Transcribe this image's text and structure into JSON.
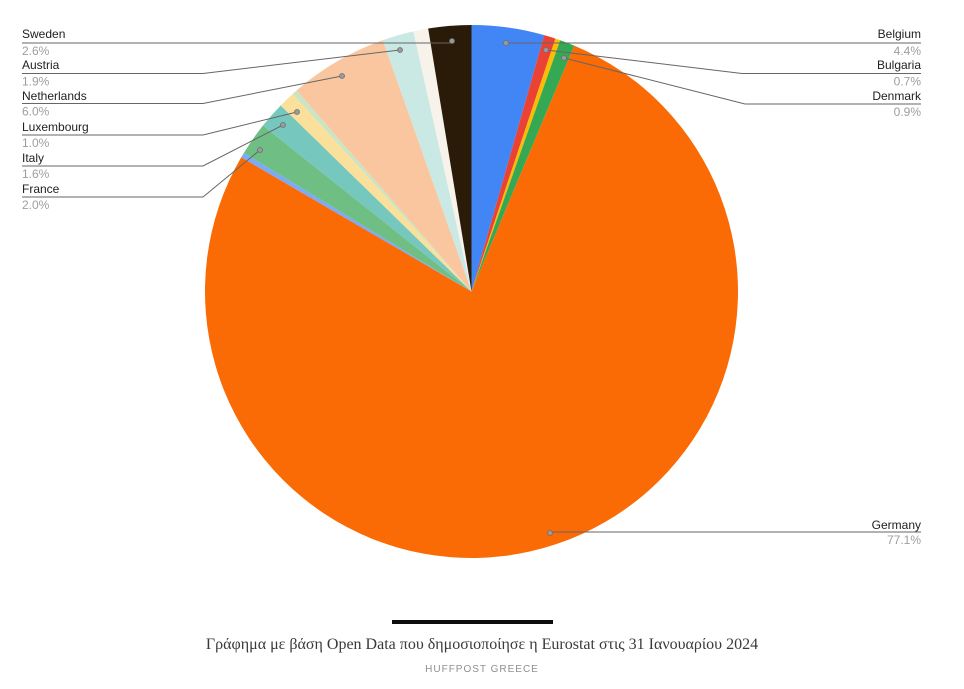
{
  "chart_data": {
    "type": "pie",
    "title": "",
    "legend_position": "outside-labels-with-leader-lines",
    "grid": false,
    "unit": "%",
    "slices": [
      {
        "id": "belgium",
        "label": "Belgium",
        "value": 4.4,
        "pct_label": "4.4%",
        "color": "#4285F4"
      },
      {
        "id": "bulgaria",
        "label": "Bulgaria",
        "value": 0.7,
        "pct_label": "0.7%",
        "color": "#EA4335"
      },
      {
        "id": "unlabeled-1",
        "label": null,
        "value": 0.3,
        "pct_label": null,
        "color": "#FBBC04"
      },
      {
        "id": "denmark",
        "label": "Denmark",
        "value": 0.9,
        "pct_label": "0.9%",
        "color": "#34A853"
      },
      {
        "id": "germany",
        "label": "Germany",
        "value": 77.1,
        "pct_label": "77.1%",
        "color": "#FA6B05"
      },
      {
        "id": "unlabeled-2",
        "label": null,
        "value": 0.3,
        "pct_label": null,
        "color": "#7BAAF7"
      },
      {
        "id": "france",
        "label": "France",
        "value": 2.0,
        "pct_label": "2.0%",
        "color": "#6FBE83"
      },
      {
        "id": "italy",
        "label": "Italy",
        "value": 1.6,
        "pct_label": "1.6%",
        "color": "#76C7BD"
      },
      {
        "id": "luxembourg",
        "label": "Luxembourg",
        "value": 1.0,
        "pct_label": "1.0%",
        "color": "#FAE09B"
      },
      {
        "id": "unlabeled-3",
        "label": null,
        "value": 0.3,
        "pct_label": null,
        "color": "#C8E6C3"
      },
      {
        "id": "netherlands",
        "label": "Netherlands",
        "value": 6.0,
        "pct_label": "6.0%",
        "color": "#F9C6A0"
      },
      {
        "id": "austria",
        "label": "Austria",
        "value": 1.9,
        "pct_label": "1.9%",
        "color": "#CAE9E5"
      },
      {
        "id": "unlabeled-4",
        "label": null,
        "value": 0.9,
        "pct_label": null,
        "color": "#F7F3EA"
      },
      {
        "id": "sweden",
        "label": "Sweden",
        "value": 2.6,
        "pct_label": "2.6%",
        "color": "#2A1A08"
      }
    ]
  },
  "caption": {
    "title": "Γράφημα με βάση Open Data που δημοσιοποίησε η Eurostat στις 31 Ιανουαρίου 2024",
    "source": "HUFFPOST GREECE"
  },
  "colors": {
    "background": "#ffffff",
    "label_text": "#212121",
    "pct_text": "#9e9e9e",
    "leader_line": "#666666",
    "anchor_dot": "#9a9a9a",
    "caption_bar": "#0d0d0d",
    "caption_text": "#3a3a3a",
    "source_text": "#8f8f8f"
  }
}
